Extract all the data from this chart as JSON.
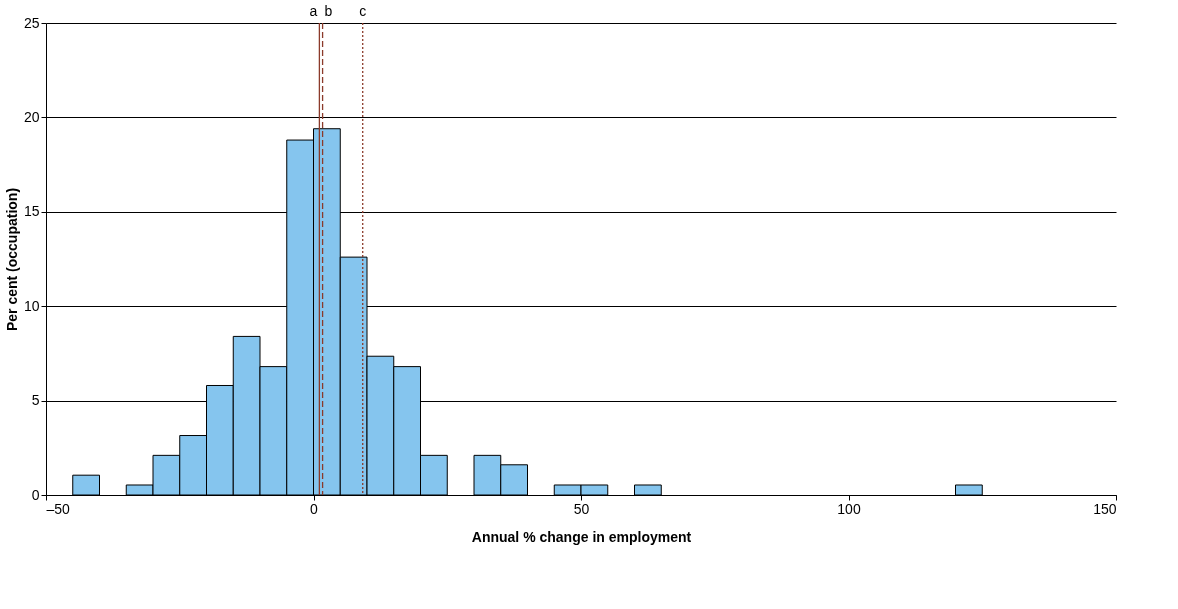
{
  "chart_data": {
    "type": "histogram",
    "xlabel": "Annual % change in employment",
    "ylabel": "Per cent (occupation)",
    "bins": [
      -45,
      -40,
      -35,
      -30,
      -25,
      -20,
      -15,
      -10,
      -5,
      0,
      5,
      10,
      15,
      20,
      25,
      30,
      35,
      40,
      45,
      50,
      55,
      60,
      65,
      70,
      75,
      80,
      85,
      90,
      95,
      100,
      105,
      110,
      115,
      120,
      125
    ],
    "values": [
      1.05,
      0,
      0.53,
      2.1,
      3.15,
      5.8,
      8.4,
      6.8,
      18.8,
      19.4,
      12.6,
      7.35,
      6.8,
      2.1,
      0,
      2.1,
      1.6,
      0,
      0.53,
      0.53,
      0,
      0.53,
      0,
      0,
      0,
      0,
      0,
      0,
      0,
      0,
      0,
      0,
      0,
      0.53
    ],
    "color": "#85c5ee",
    "xlim": [
      -50,
      150
    ],
    "xticks": [
      {
        "value": -50,
        "label": "–50"
      },
      0,
      50,
      100,
      150
    ],
    "ylim": [
      0,
      25
    ],
    "yticks": [
      0,
      5,
      10,
      15,
      20,
      25
    ],
    "grid": "y",
    "legend": false,
    "ref_lines": [
      {
        "axis": "x",
        "value": 1.1,
        "label": "a",
        "color": "#8b3a2a",
        "line_style": "solid"
      },
      {
        "axis": "x",
        "value": 1.7,
        "label": "b",
        "color": "#8b3a2a",
        "line_style": "dashed"
      },
      {
        "axis": "x",
        "value": 9.2,
        "label": "c",
        "color": "#8b3a2a",
        "line_style": "dotted"
      }
    ]
  }
}
